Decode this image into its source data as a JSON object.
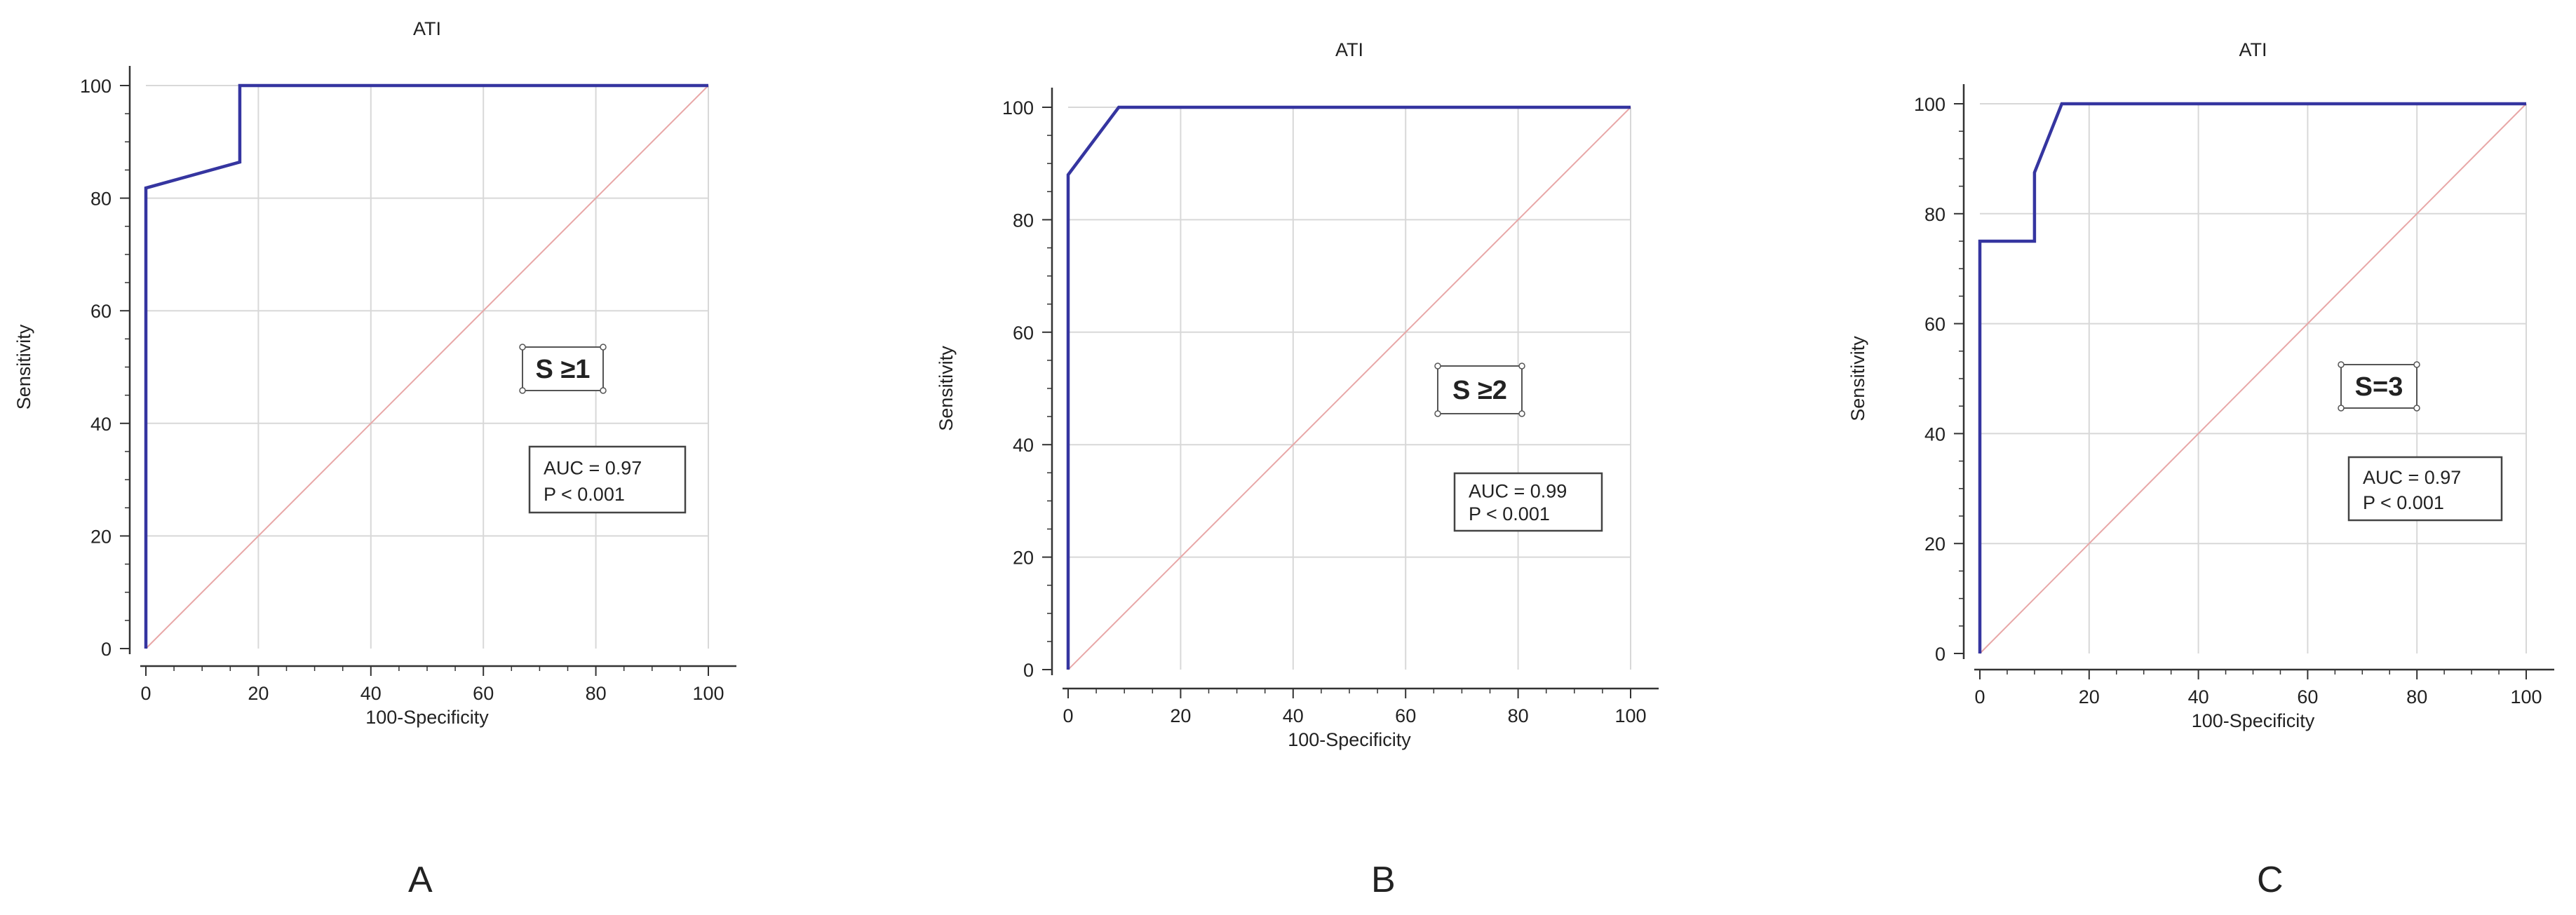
{
  "colors": {
    "roc": "#3535a0",
    "diagonal": "#e8a7a7",
    "grid": "#d8d8d8",
    "axis": "#333333"
  },
  "chart_data": [
    {
      "type": "line",
      "panel_label": "A",
      "title": "ATI",
      "xlabel": "100-Specificity",
      "ylabel": "Sensitivity",
      "xlim": [
        0,
        100
      ],
      "ylim": [
        0,
        100
      ],
      "xticks": [
        "0",
        "20",
        "40",
        "60",
        "80",
        "100"
      ],
      "yticks": [
        "0",
        "20",
        "40",
        "60",
        "80",
        "100"
      ],
      "grid": true,
      "series": [
        {
          "x": [
            0,
            0,
            16.7,
            16.7,
            100
          ],
          "y": [
            0,
            81.8,
            86.4,
            100,
            100
          ]
        }
      ],
      "reference_line": {
        "x": [
          0,
          100
        ],
        "y": [
          0,
          100
        ]
      },
      "annotations": {
        "condition": "S ≥1",
        "auc": "AUC = 0.97",
        "p": "P < 0.001"
      }
    },
    {
      "type": "line",
      "panel_label": "B",
      "title": "ATI",
      "xlabel": "100-Specificity",
      "ylabel": "Sensitivity",
      "xlim": [
        0,
        100
      ],
      "ylim": [
        0,
        100
      ],
      "xticks": [
        "0",
        "20",
        "40",
        "60",
        "80",
        "100"
      ],
      "yticks": [
        "0",
        "20",
        "40",
        "60",
        "80",
        "100"
      ],
      "grid": true,
      "series": [
        {
          "x": [
            0,
            0,
            9,
            100
          ],
          "y": [
            0,
            88,
            100,
            100
          ]
        }
      ],
      "reference_line": {
        "x": [
          0,
          100
        ],
        "y": [
          0,
          100
        ]
      },
      "annotations": {
        "condition": "S ≥2",
        "auc": "AUC = 0.99",
        "p": "P < 0.001"
      }
    },
    {
      "type": "line",
      "panel_label": "C",
      "title": "ATI",
      "xlabel": "100-Specificity",
      "ylabel": "Sensitivity",
      "xlim": [
        0,
        100
      ],
      "ylim": [
        0,
        100
      ],
      "xticks": [
        "0",
        "20",
        "40",
        "60",
        "80",
        "100"
      ],
      "yticks": [
        "0",
        "20",
        "40",
        "60",
        "80",
        "100"
      ],
      "grid": true,
      "series": [
        {
          "x": [
            0,
            0,
            10,
            10,
            15,
            100
          ],
          "y": [
            0,
            75,
            75,
            87.5,
            100,
            100
          ]
        }
      ],
      "reference_line": {
        "x": [
          0,
          100
        ],
        "y": [
          0,
          100
        ]
      },
      "annotations": {
        "condition": "S=3",
        "auc": "AUC = 0.97",
        "p": "P < 0.001"
      }
    }
  ]
}
